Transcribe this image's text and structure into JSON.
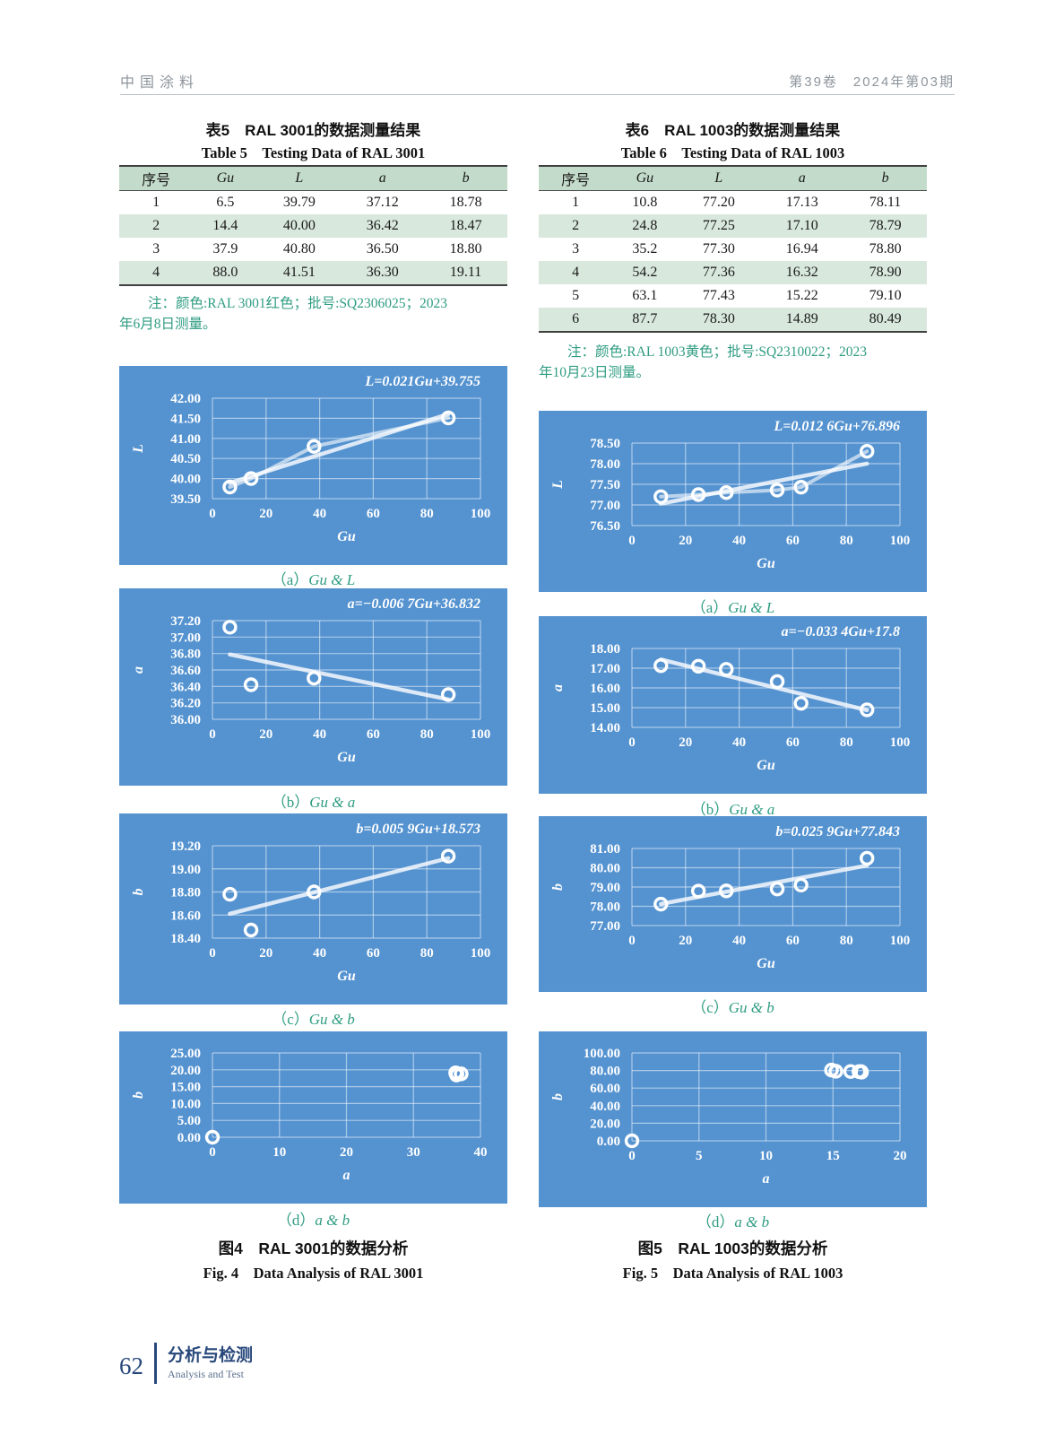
{
  "page": {
    "header": {
      "journal": "中国涂料",
      "issue": "第39卷　2024年第03期"
    },
    "footer": {
      "page_number": "62",
      "section_cn": "分析与检测",
      "section_en": "Analysis and Test"
    }
  },
  "colors": {
    "chart_bg": "#5593d0",
    "chart_grid": "rgba(255,255,255,0.5)",
    "chart_text": "#ffffff",
    "accent_green": "#2f9c82",
    "table_header_bg": "#c3dbca",
    "table_alt_row_bg": "#d8e8dd",
    "footer_blue": "#27477a",
    "header_gray": "#8d959c"
  },
  "table5": {
    "title_cn": "表5　RAL 3001的数据测量结果",
    "title_en": "Table 5　Testing Data of RAL 3001",
    "headers": [
      "序号",
      "Gu",
      "L",
      "a",
      "b"
    ],
    "rows": [
      [
        "1",
        "6.5",
        "39.79",
        "37.12",
        "18.78"
      ],
      [
        "2",
        "14.4",
        "40.00",
        "36.42",
        "18.47"
      ],
      [
        "3",
        "37.9",
        "40.80",
        "36.50",
        "18.80"
      ],
      [
        "4",
        "88.0",
        "41.51",
        "36.30",
        "19.11"
      ]
    ],
    "note_line1": "注：颜色:RAL 3001红色；批号:SQ2306025；2023",
    "note_line2": "年6月8日测量。"
  },
  "table6": {
    "title_cn": "表6　RAL 1003的数据测量结果",
    "title_en": "Table 6　Testing Data of RAL 1003",
    "headers": [
      "序号",
      "Gu",
      "L",
      "a",
      "b"
    ],
    "rows": [
      [
        "1",
        "10.8",
        "77.20",
        "17.13",
        "78.11"
      ],
      [
        "2",
        "24.8",
        "77.25",
        "17.10",
        "78.79"
      ],
      [
        "3",
        "35.2",
        "77.30",
        "16.94",
        "78.80"
      ],
      [
        "4",
        "54.2",
        "77.36",
        "16.32",
        "78.90"
      ],
      [
        "5",
        "63.1",
        "77.43",
        "15.22",
        "79.10"
      ],
      [
        "6",
        "87.7",
        "78.30",
        "14.89",
        "80.49"
      ]
    ],
    "note_line1": "注：颜色:RAL 1003黄色；批号:SQ2310022；2023",
    "note_line2": "年10月23日测量。"
  },
  "fig4": {
    "caption_cn": "图4　RAL 3001的数据分析",
    "caption_en": "Fig. 4　Data Analysis of RAL 3001"
  },
  "fig5": {
    "caption_cn": "图5　RAL 1003的数据分析",
    "caption_en": "Fig. 5　Data Analysis of RAL 1003"
  },
  "chart_data": [
    {
      "figure": "图4",
      "panel": "a",
      "type": "scatter",
      "caption_prefix": "（a）",
      "caption_label": "Gu & L",
      "equation": "L=0.021Gu+39.755",
      "xlabel": "Gu",
      "ylabel": "L",
      "x": [
        6.5,
        14.4,
        37.9,
        88.0
      ],
      "y": [
        39.79,
        40.0,
        40.8,
        41.51
      ],
      "xlim": [
        0,
        100
      ],
      "ylim": [
        39.5,
        42
      ],
      "xticks": [
        0,
        20,
        40,
        60,
        80,
        100
      ],
      "yticks": [
        39.5,
        40,
        40.5,
        41,
        41.5,
        42
      ],
      "xdec": 0,
      "ydec": 2,
      "connect": true,
      "trend": [
        0.021,
        39.755
      ]
    },
    {
      "figure": "图4",
      "panel": "b",
      "type": "scatter",
      "caption_prefix": "（b）",
      "caption_label": "Gu & a",
      "equation": "a=−0.006 7Gu+36.832",
      "xlabel": "Gu",
      "ylabel": "a",
      "x": [
        6.5,
        14.4,
        37.9,
        88.0
      ],
      "y": [
        37.12,
        36.42,
        36.5,
        36.3
      ],
      "xlim": [
        0,
        100
      ],
      "ylim": [
        36,
        37.2
      ],
      "xticks": [
        0,
        20,
        40,
        60,
        80,
        100
      ],
      "yticks": [
        36,
        36.2,
        36.4,
        36.6,
        36.8,
        37,
        37.2
      ],
      "xdec": 0,
      "ydec": 2,
      "connect": false,
      "trend": [
        -0.0067,
        36.832
      ]
    },
    {
      "figure": "图4",
      "panel": "c",
      "type": "scatter",
      "caption_prefix": "（c）",
      "caption_label": "Gu & b",
      "equation": "b=0.005 9Gu+18.573",
      "xlabel": "Gu",
      "ylabel": "b",
      "x": [
        6.5,
        14.4,
        37.9,
        88.0
      ],
      "y": [
        18.78,
        18.47,
        18.8,
        19.11
      ],
      "xlim": [
        0,
        100
      ],
      "ylim": [
        18.4,
        19.2
      ],
      "xticks": [
        0,
        20,
        40,
        60,
        80,
        100
      ],
      "yticks": [
        18.4,
        18.6,
        18.8,
        19,
        19.2
      ],
      "xdec": 0,
      "ydec": 2,
      "connect": false,
      "trend": [
        0.0059,
        18.573
      ]
    },
    {
      "figure": "图4",
      "panel": "d",
      "type": "scatter",
      "caption_prefix": "（d）",
      "caption_label": "a & b",
      "equation": "",
      "xlabel": "a",
      "ylabel": "b",
      "x": [
        37.12,
        36.42,
        36.5,
        36.3,
        0
      ],
      "y": [
        18.78,
        18.47,
        18.8,
        19.11,
        0
      ],
      "xlim": [
        0,
        40
      ],
      "ylim": [
        0,
        25
      ],
      "xticks": [
        0,
        10,
        20,
        30,
        40
      ],
      "yticks": [
        0,
        5,
        10,
        15,
        20,
        25
      ],
      "xdec": 0,
      "ydec": 2,
      "connect": false,
      "trend": null
    },
    {
      "figure": "图5",
      "panel": "a",
      "type": "scatter",
      "caption_prefix": "（a）",
      "caption_label": "Gu & L",
      "equation": "L=0.012 6Gu+76.896",
      "xlabel": "Gu",
      "ylabel": "L",
      "x": [
        10.8,
        24.8,
        35.2,
        54.2,
        63.1,
        87.7
      ],
      "y": [
        77.2,
        77.25,
        77.3,
        77.36,
        77.43,
        78.3
      ],
      "xlim": [
        0,
        100
      ],
      "ylim": [
        76.5,
        78.5
      ],
      "xticks": [
        0,
        20,
        40,
        60,
        80,
        100
      ],
      "yticks": [
        76.5,
        77,
        77.5,
        78,
        78.5
      ],
      "xdec": 0,
      "ydec": 2,
      "connect": true,
      "trend": [
        0.0126,
        76.896
      ]
    },
    {
      "figure": "图5",
      "panel": "b",
      "type": "scatter",
      "caption_prefix": "（b）",
      "caption_label": "Gu & a",
      "equation": "a=−0.033 4Gu+17.8",
      "xlabel": "Gu",
      "ylabel": "a",
      "x": [
        10.8,
        24.8,
        35.2,
        54.2,
        63.1,
        87.7
      ],
      "y": [
        17.13,
        17.1,
        16.94,
        16.32,
        15.22,
        14.89
      ],
      "xlim": [
        0,
        100
      ],
      "ylim": [
        14,
        18
      ],
      "xticks": [
        0,
        20,
        40,
        60,
        80,
        100
      ],
      "yticks": [
        14,
        15,
        16,
        17,
        18
      ],
      "xdec": 0,
      "ydec": 2,
      "connect": false,
      "trend": [
        -0.0334,
        17.8
      ]
    },
    {
      "figure": "图5",
      "panel": "c",
      "type": "scatter",
      "caption_prefix": "（c）",
      "caption_label": "Gu & b",
      "equation": "b=0.025 9Gu+77.843",
      "xlabel": "Gu",
      "ylabel": "b",
      "x": [
        10.8,
        24.8,
        35.2,
        54.2,
        63.1,
        87.7
      ],
      "y": [
        78.11,
        78.79,
        78.8,
        78.9,
        79.1,
        80.49
      ],
      "xlim": [
        0,
        100
      ],
      "ylim": [
        77,
        81
      ],
      "xticks": [
        0,
        20,
        40,
        60,
        80,
        100
      ],
      "yticks": [
        77,
        78,
        79,
        80,
        81
      ],
      "xdec": 0,
      "ydec": 2,
      "connect": false,
      "trend": [
        0.0259,
        77.843
      ]
    },
    {
      "figure": "图5",
      "panel": "d",
      "type": "scatter",
      "caption_prefix": "（d）",
      "caption_label": "a & b",
      "equation": "",
      "xlabel": "a",
      "ylabel": "b",
      "x": [
        17.13,
        17.1,
        16.94,
        16.32,
        15.22,
        14.89,
        0
      ],
      "y": [
        78.11,
        78.79,
        78.8,
        78.9,
        79.1,
        80.49,
        0
      ],
      "xlim": [
        0,
        20
      ],
      "ylim": [
        0,
        100
      ],
      "xticks": [
        0,
        5,
        10,
        15,
        20
      ],
      "yticks": [
        0,
        20,
        40,
        60,
        80,
        100
      ],
      "xdec": 0,
      "ydec": 2,
      "connect": false,
      "trend": null
    }
  ]
}
